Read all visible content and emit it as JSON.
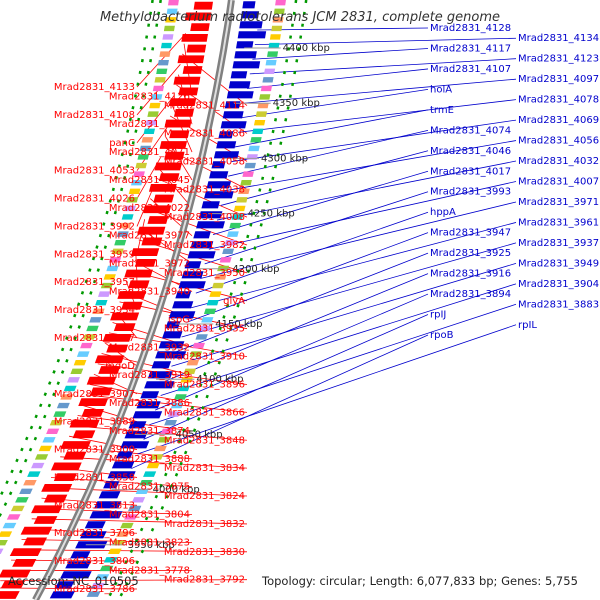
{
  "title": "Methylobacterium radiotolerans JCM 2831, complete genome",
  "accession": "Accession: NC_010505",
  "topology": "Topology: circular; Length: 6,077,833 bp; Genes: 5,755",
  "colors": {
    "forward": "#ff0000",
    "reverse": "#0000cc",
    "backbone": "#808080",
    "tick_dash": "#009900"
  },
  "kbp_ticks": [
    "4400 kbp",
    "4350 kbp",
    "4300 kbp",
    "4250 kbp",
    "4200 kbp",
    "4150 kbp",
    "4100 kbp",
    "4050 kbp",
    "4000 kbp",
    "3950 kbp"
  ],
  "left_labels": [
    "Mrad2831_4133",
    "Mrad2831_4126",
    "Mrad2831_4114",
    "Mrad2831_4108",
    "Mrad2831_4095",
    "Mrad2831_4086",
    "panC",
    "Mrad2831_4071",
    "Mrad2831_4058",
    "Mrad2831_4053",
    "Mrad2831_4045",
    "Mrad2831_4038",
    "Mrad2831_4026",
    "Mrad2831_4022",
    "Mrad2831_4008",
    "Mrad2831_3992",
    "Mrad2831_3977",
    "Mrad2831_3982",
    "Mrad2831_3959",
    "Mrad2831_3972",
    "Mrad2831_3950",
    "Mrad2831_3957",
    "Mrad2831_3940",
    "glyA",
    "Mrad2831_3934",
    "ispG",
    "Mrad2831_3935",
    "Mrad2831_3917",
    "Mrad2831_3932",
    "Mrad2831_3910",
    "mdoD",
    "Mrad2831_3919",
    "Mrad2831_3896",
    "Mrad2831_3907",
    "Mrad2831_3886",
    "Mrad2831_3866",
    "Mrad2831_3889",
    "Mrad2831_3874",
    "Mrad2831_3848",
    "Mrad2831_3900",
    "Mrad2831_3888",
    "Mrad2831_3834",
    "Mrad2831_3858",
    "Mrad2831_3875",
    "Mrad2831_3824",
    "Mrad2831_3813",
    "Mrad2831_3804",
    "Mrad2831_3832",
    "Mrad2831_3796",
    "Mrad2831_3823",
    "Mrad2831_3830",
    "Mrad2831_3806",
    "Mrad2831_3778",
    "Mrad2831_3792",
    "Mrad2831_3786"
  ],
  "right_labels": [
    "Mrad2831_4128",
    "Mrad2831_4134",
    "Mrad2831_4117",
    "Mrad2831_4123",
    "Mrad2831_4107",
    "Mrad2831_4097",
    "holA",
    "Mrad2831_4078",
    "trmE",
    "Mrad2831_4069",
    "Mrad2831_4074",
    "Mrad2831_4056",
    "Mrad2831_4046",
    "Mrad2831_4032",
    "Mrad2831_4017",
    "Mrad2831_4007",
    "Mrad2831_3993",
    "Mrad2831_3971",
    "hppA",
    "Mrad2831_3961",
    "Mrad2831_3947",
    "Mrad2831_3937",
    "Mrad2831_3925",
    "Mrad2831_3949",
    "Mrad2831_3916",
    "Mrad2831_3904",
    "Mrad2831_3894",
    "Mrad2831_3883",
    "rpIJ",
    "rpIL",
    "rpoB"
  ]
}
